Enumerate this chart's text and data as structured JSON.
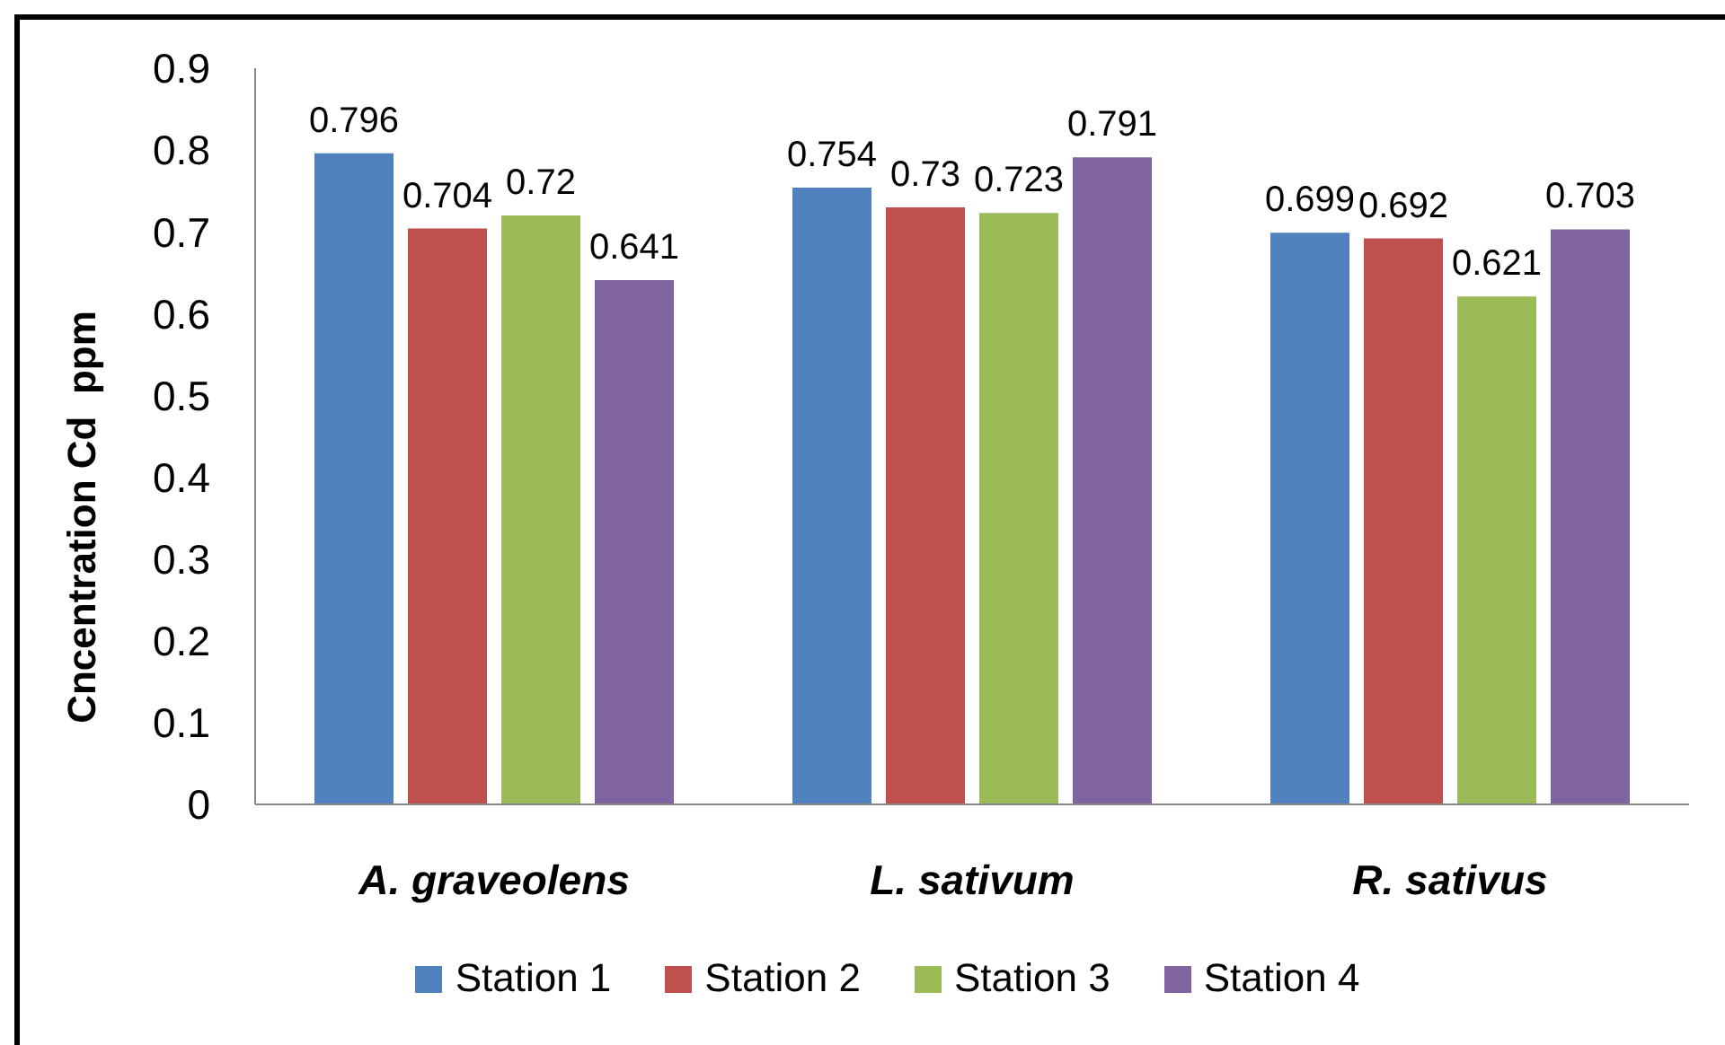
{
  "chart_data": {
    "type": "bar",
    "ylabel": "Cncentration Cd  ppm",
    "categories": [
      "A. graveolens",
      "L. sativum",
      "R. sativus"
    ],
    "series": [
      {
        "name": "Station 1",
        "color": "#4f81bd",
        "values": [
          0.796,
          0.754,
          0.699
        ]
      },
      {
        "name": "Station 2",
        "color": "#c0504d",
        "values": [
          0.704,
          0.73,
          0.692
        ]
      },
      {
        "name": "Station 3",
        "color": "#9bbb59",
        "values": [
          0.72,
          0.723,
          0.621
        ]
      },
      {
        "name": "Station 4",
        "color": "#8064a2",
        "values": [
          0.641,
          0.791,
          0.703
        ]
      }
    ],
    "ylim": [
      0,
      0.9
    ],
    "yticks": [
      0,
      0.1,
      0.2,
      0.3,
      0.4,
      0.5,
      0.6,
      0.7,
      0.8,
      0.9
    ],
    "data_labels": true,
    "legend": "bottom"
  }
}
